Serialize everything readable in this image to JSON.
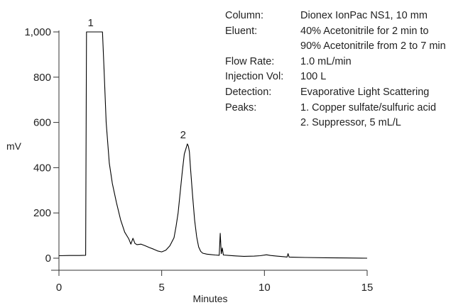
{
  "chart_data": {
    "type": "line",
    "xlabel": "Minutes",
    "ylabel": "mV",
    "xlim": [
      0,
      15
    ],
    "ylim": [
      0,
      1000
    ],
    "x_ticks": [
      0,
      5,
      10,
      15
    ],
    "y_ticks": [
      0,
      200,
      400,
      600,
      800,
      1000
    ],
    "x_tick_labels": [
      "0",
      "5",
      "10",
      "15"
    ],
    "y_tick_labels": [
      "0",
      "200",
      "400",
      "600",
      "800",
      "1,000"
    ],
    "grid": false,
    "color": "#000000",
    "series": [
      {
        "x": [
          0,
          0.5,
          1.0,
          1.3,
          1.34,
          1.36,
          1.42,
          1.5,
          2.0,
          2.1,
          2.12,
          2.2,
          2.3,
          2.45,
          2.6,
          2.8,
          3.0,
          3.2,
          3.4,
          3.5,
          3.6,
          3.7,
          3.8,
          4.0,
          4.2,
          4.4,
          4.6,
          4.8,
          5.0,
          5.2,
          5.4,
          5.6,
          5.7,
          5.8,
          5.9,
          6.0,
          6.1,
          6.2,
          6.25,
          6.3,
          6.35,
          6.4,
          6.5,
          6.6,
          6.7,
          6.8,
          6.9,
          7.0,
          7.2,
          7.4,
          7.6,
          7.8,
          7.85,
          7.9,
          7.95,
          8.0,
          8.3,
          8.6,
          9.0,
          9.5,
          9.8,
          10.1,
          10.3,
          10.6,
          11.0,
          11.1,
          11.15,
          11.2,
          11.5,
          12,
          13,
          14,
          15
        ],
        "y": [
          11,
          12,
          12,
          13,
          1000,
          1000,
          1000,
          1000,
          1000,
          1000,
          1000,
          820,
          600,
          420,
          330,
          245,
          170,
          115,
          85,
          62,
          88,
          65,
          60,
          62,
          55,
          47,
          40,
          32,
          28,
          35,
          55,
          90,
          140,
          200,
          290,
          380,
          460,
          490,
          505,
          495,
          470,
          400,
          280,
          170,
          95,
          50,
          30,
          22,
          18,
          16,
          14,
          13,
          110,
          20,
          45,
          14,
          12,
          10,
          8,
          9,
          11,
          15,
          12,
          9,
          6,
          5,
          20,
          5,
          4,
          3,
          2,
          1,
          0
        ]
      }
    ],
    "annotations": [
      {
        "text": "1",
        "x": 1.75,
        "y": 1000
      },
      {
        "text": "2",
        "x": 6.25,
        "y": 505
      }
    ]
  },
  "info": {
    "rows": [
      {
        "label": "Column:",
        "value": "Dionex IonPac NS1, 10 mm"
      },
      {
        "label": "Eluent:",
        "value": "40% Acetonitrile for 2 min to"
      },
      {
        "label": "",
        "value": "90% Acetonitrile from 2 to 7 min"
      },
      {
        "label": "Flow Rate:",
        "value": "1.0 mL/min"
      },
      {
        "label": "Injection Vol:",
        "value": "100 L"
      },
      {
        "label": "Detection:",
        "value": "Evaporative Light Scattering"
      },
      {
        "label": "Peaks:",
        "value": "1. Copper sulfate/sulfuric acid"
      },
      {
        "label": "",
        "value": "2. Suppressor, 5 mL/L"
      }
    ]
  }
}
